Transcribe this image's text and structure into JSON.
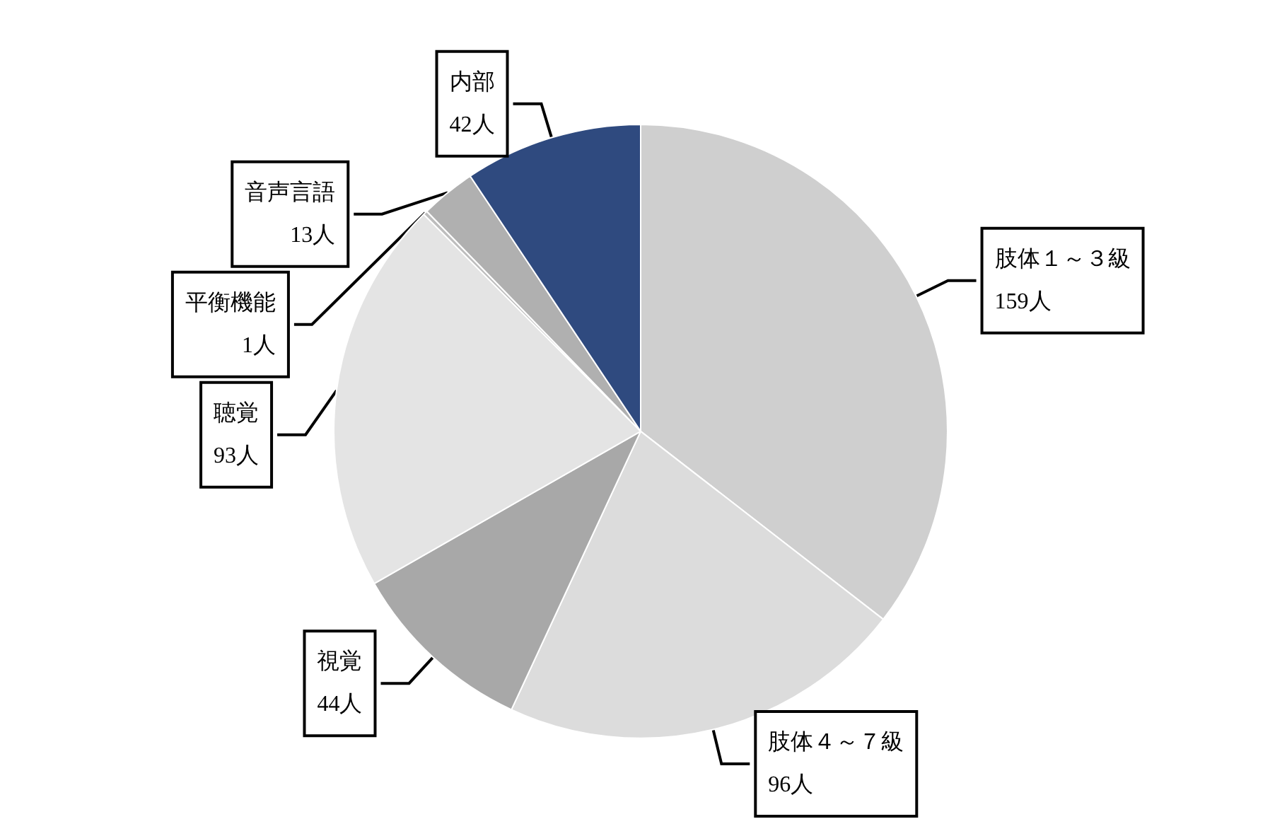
{
  "chart_data": {
    "type": "pie",
    "categories": [
      "肢体１～３級",
      "肢体４～７級",
      "視覚",
      "聴覚",
      "平衡機能",
      "音声言語",
      "内部"
    ],
    "values": [
      159,
      96,
      44,
      93,
      1,
      13,
      42
    ],
    "value_labels": [
      "159人",
      "96人",
      "44人",
      "93人",
      "1人",
      "13人",
      "42人"
    ],
    "colors": [
      "#cfcfcf",
      "#dcdcdc",
      "#a8a8a8",
      "#e4e4e4",
      "#bdbdbd",
      "#b0b0b0",
      "#2f4a7f"
    ],
    "legend": false
  }
}
